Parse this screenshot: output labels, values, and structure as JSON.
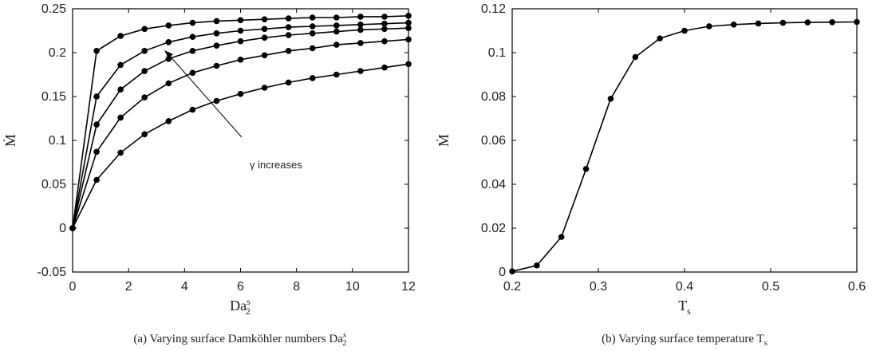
{
  "chart_data": [
    {
      "type": "line",
      "caption": "(a) Varying surface Damköhler numbers Da",
      "caption_sup": "s",
      "caption_sub": "2",
      "xlabel": "Da",
      "xlabel_sup": "s",
      "xlabel_sub": "2",
      "ylabel": "Ṁ",
      "xlim": [
        0,
        12
      ],
      "ylim": [
        -0.05,
        0.25
      ],
      "xticks": [
        0,
        2,
        4,
        6,
        8,
        10,
        12
      ],
      "yticks": [
        -0.05,
        0,
        0.05,
        0.1,
        0.15,
        0.2,
        0.25
      ],
      "ytick_labels": [
        "-0.05",
        "0",
        "0.05",
        "0.1",
        "0.15",
        "0.2",
        "0.25"
      ],
      "xtick_labels": [
        "0",
        "2",
        "4",
        "6",
        "8",
        "10",
        "12"
      ],
      "grid": false,
      "annotation": "γ increases",
      "x": [
        0,
        0.857,
        1.714,
        2.571,
        3.429,
        4.286,
        5.143,
        6.0,
        6.857,
        7.714,
        8.571,
        9.429,
        10.286,
        11.143,
        12.0
      ],
      "series": [
        {
          "values": [
            0,
            0.055,
            0.086,
            0.107,
            0.122,
            0.135,
            0.145,
            0.153,
            0.16,
            0.166,
            0.171,
            0.175,
            0.179,
            0.183,
            0.187
          ]
        },
        {
          "values": [
            0,
            0.087,
            0.126,
            0.149,
            0.165,
            0.177,
            0.185,
            0.192,
            0.197,
            0.202,
            0.205,
            0.209,
            0.211,
            0.213,
            0.215
          ]
        },
        {
          "values": [
            0,
            0.118,
            0.158,
            0.179,
            0.193,
            0.202,
            0.208,
            0.213,
            0.217,
            0.22,
            0.222,
            0.224,
            0.226,
            0.227,
            0.228
          ]
        },
        {
          "values": [
            0,
            0.15,
            0.186,
            0.202,
            0.212,
            0.218,
            0.222,
            0.225,
            0.227,
            0.229,
            0.23,
            0.231,
            0.232,
            0.233,
            0.234
          ]
        },
        {
          "values": [
            0,
            0.202,
            0.219,
            0.227,
            0.231,
            0.234,
            0.236,
            0.237,
            0.238,
            0.239,
            0.24,
            0.24,
            0.241,
            0.241,
            0.242
          ]
        }
      ]
    },
    {
      "type": "line",
      "caption": "(b) Varying surface temperature T",
      "caption_sub": "s",
      "xlabel": "T",
      "xlabel_sub": "s",
      "ylabel": "Ṁ",
      "xlim": [
        0.2,
        0.6
      ],
      "ylim": [
        0,
        0.12
      ],
      "xticks": [
        0.2,
        0.3,
        0.4,
        0.5,
        0.6
      ],
      "xtick_labels": [
        "0.2",
        "0.3",
        "0.4",
        "0.5",
        "0.6"
      ],
      "yticks": [
        0,
        0.02,
        0.04,
        0.06,
        0.08,
        0.1,
        0.12
      ],
      "ytick_labels": [
        "0",
        "0.02",
        "0.04",
        "0.06",
        "0.08",
        "0.1",
        "0.12"
      ],
      "grid": false,
      "series": [
        {
          "x": [
            0.2,
            0.2286,
            0.2571,
            0.2857,
            0.3143,
            0.3429,
            0.3714,
            0.4,
            0.4286,
            0.4571,
            0.4857,
            0.5143,
            0.5429,
            0.5714,
            0.6
          ],
          "values": [
            0.0003,
            0.003,
            0.016,
            0.047,
            0.079,
            0.098,
            0.1065,
            0.11,
            0.112,
            0.1128,
            0.1133,
            0.1136,
            0.1138,
            0.1139,
            0.114
          ]
        }
      ]
    }
  ]
}
